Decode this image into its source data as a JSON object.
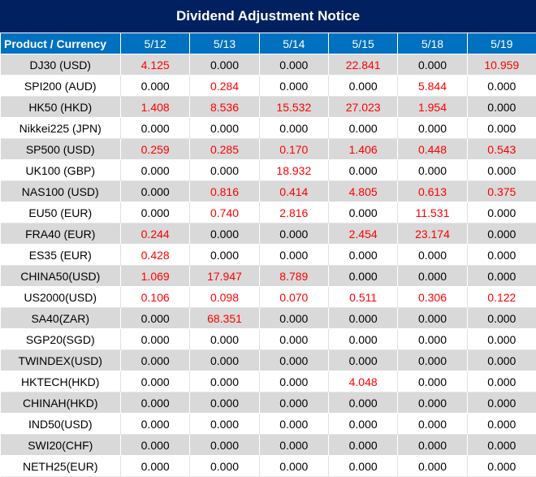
{
  "title": "Dividend Adjustment Notice",
  "header": {
    "product_label": "Product / Currency",
    "dates": [
      "5/12",
      "5/13",
      "5/14",
      "5/15",
      "5/18",
      "5/19"
    ]
  },
  "colors": {
    "title_bg": "#002060",
    "header_bg": "#0070c0",
    "highlight": "#ff0000",
    "stripe": "#d9d9d9"
  },
  "rows": [
    {
      "product": "DJ30 (USD)",
      "values": [
        "4.125",
        "0.000",
        "0.000",
        "22.841",
        "0.000",
        "10.959"
      ]
    },
    {
      "product": "SPI200 (AUD)",
      "values": [
        "0.000",
        "0.284",
        "0.000",
        "0.000",
        "5.844",
        "0.000"
      ]
    },
    {
      "product": "HK50 (HKD)",
      "values": [
        "1.408",
        "8.536",
        "15.532",
        "27.023",
        "1.954",
        "0.000"
      ]
    },
    {
      "product": "Nikkei225 (JPN)",
      "values": [
        "0.000",
        "0.000",
        "0.000",
        "0.000",
        "0.000",
        "0.000"
      ]
    },
    {
      "product": "SP500 (USD)",
      "values": [
        "0.259",
        "0.285",
        "0.170",
        "1.406",
        "0.448",
        "0.543"
      ]
    },
    {
      "product": "UK100 (GBP)",
      "values": [
        "0.000",
        "0.000",
        "18.932",
        "0.000",
        "0.000",
        "0.000"
      ]
    },
    {
      "product": "NAS100 (USD)",
      "values": [
        "0.000",
        "0.816",
        "0.414",
        "4.805",
        "0.613",
        "0.375"
      ]
    },
    {
      "product": "EU50 (EUR)",
      "values": [
        "0.000",
        "0.740",
        "2.816",
        "0.000",
        "11.531",
        "0.000"
      ]
    },
    {
      "product": "FRA40 (EUR)",
      "values": [
        "0.244",
        "0.000",
        "0.000",
        "2.454",
        "23.174",
        "0.000"
      ]
    },
    {
      "product": "ES35 (EUR)",
      "values": [
        "0.428",
        "0.000",
        "0.000",
        "0.000",
        "0.000",
        "0.000"
      ]
    },
    {
      "product": "CHINA50(USD)",
      "values": [
        "1.069",
        "17.947",
        "8.789",
        "0.000",
        "0.000",
        "0.000"
      ]
    },
    {
      "product": "US2000(USD)",
      "values": [
        "0.106",
        "0.098",
        "0.070",
        "0.511",
        "0.306",
        "0.122"
      ]
    },
    {
      "product": "SA40(ZAR)",
      "values": [
        "0.000",
        "68.351",
        "0.000",
        "0.000",
        "0.000",
        "0.000"
      ]
    },
    {
      "product": "SGP20(SGD)",
      "values": [
        "0.000",
        "0.000",
        "0.000",
        "0.000",
        "0.000",
        "0.000"
      ]
    },
    {
      "product": "TWINDEX(USD)",
      "values": [
        "0.000",
        "0.000",
        "0.000",
        "0.000",
        "0.000",
        "0.000"
      ]
    },
    {
      "product": "HKTECH(HKD)",
      "values": [
        "0.000",
        "0.000",
        "0.000",
        "4.048",
        "0.000",
        "0.000"
      ]
    },
    {
      "product": "CHINAH(HKD)",
      "values": [
        "0.000",
        "0.000",
        "0.000",
        "0.000",
        "0.000",
        "0.000"
      ]
    },
    {
      "product": "IND50(USD)",
      "values": [
        "0.000",
        "0.000",
        "0.000",
        "0.000",
        "0.000",
        "0.000"
      ]
    },
    {
      "product": "SWI20(CHF)",
      "values": [
        "0.000",
        "0.000",
        "0.000",
        "0.000",
        "0.000",
        "0.000"
      ]
    },
    {
      "product": "NETH25(EUR)",
      "values": [
        "0.000",
        "0.000",
        "0.000",
        "0.000",
        "0.000",
        "0.000"
      ]
    }
  ]
}
